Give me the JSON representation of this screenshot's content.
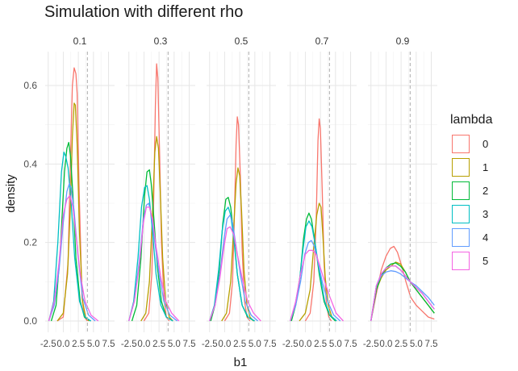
{
  "chart_data": {
    "type": "line",
    "title": "Simulation with different rho",
    "xlabel": "b1",
    "ylabel": "density",
    "ylim": [
      0,
      0.68
    ],
    "yticks": [
      0.0,
      0.2,
      0.4,
      0.6
    ],
    "ytick_labels": [
      "0.0",
      "0.2",
      "0.4",
      "0.6"
    ],
    "xlim": [
      -3.0,
      8.5
    ],
    "xticks": [
      -2.5,
      0.0,
      2.5,
      5.0,
      7.5
    ],
    "xtick_labels": [
      "-2.5",
      "0.0",
      "2.5",
      "5.0",
      "7.5"
    ],
    "reference_line_x": 4.0,
    "grid": true,
    "legend_title": "lambda",
    "legend_position": "right",
    "lambdas": [
      "0",
      "1",
      "2",
      "3",
      "4",
      "5"
    ],
    "colors": {
      "0": "#F8766D",
      "1": "#B79F00",
      "2": "#00BA38",
      "3": "#00BFC4",
      "4": "#619CFF",
      "5": "#F564E3"
    },
    "panels": [
      {
        "label": "0.1",
        "series": [
          {
            "lambda": "0",
            "x": [
              -1.0,
              0.0,
              0.8,
              1.2,
              1.5,
              1.8,
              2.1,
              2.3,
              2.6,
              3.1,
              3.5,
              4.0
            ],
            "y": [
              0.0,
              0.01,
              0.15,
              0.42,
              0.6,
              0.645,
              0.63,
              0.58,
              0.35,
              0.06,
              0.01,
              0.0
            ]
          },
          {
            "lambda": "1",
            "x": [
              -1.0,
              0.0,
              0.7,
              1.2,
              1.5,
              1.8,
              2.0,
              2.3,
              2.7,
              3.2,
              3.7,
              4.2
            ],
            "y": [
              0.0,
              0.02,
              0.12,
              0.3,
              0.47,
              0.555,
              0.55,
              0.45,
              0.22,
              0.05,
              0.01,
              0.0
            ]
          },
          {
            "lambda": "2",
            "x": [
              -2.0,
              -1.2,
              -0.5,
              0.2,
              0.6,
              0.9,
              1.2,
              1.6,
              2.1,
              2.8,
              3.5,
              4.5
            ],
            "y": [
              0.0,
              0.04,
              0.18,
              0.38,
              0.44,
              0.455,
              0.42,
              0.32,
              0.16,
              0.05,
              0.01,
              0.0
            ]
          },
          {
            "lambda": "3",
            "x": [
              -2.4,
              -1.6,
              -0.9,
              -0.3,
              0.1,
              0.4,
              0.8,
              1.3,
              1.9,
              2.7,
              3.6,
              4.6
            ],
            "y": [
              0.0,
              0.05,
              0.2,
              0.38,
              0.43,
              0.42,
              0.39,
              0.3,
              0.16,
              0.05,
              0.01,
              0.0
            ]
          },
          {
            "lambda": "4",
            "x": [
              -2.4,
              -1.5,
              -0.7,
              0.0,
              0.6,
              1.0,
              1.3,
              1.8,
              2.4,
              3.2,
              4.2,
              5.3
            ],
            "y": [
              0.0,
              0.04,
              0.13,
              0.25,
              0.33,
              0.35,
              0.34,
              0.28,
              0.17,
              0.06,
              0.015,
              0.0
            ]
          },
          {
            "lambda": "5",
            "x": [
              -2.4,
              -1.5,
              -0.7,
              0.0,
              0.6,
              1.1,
              1.6,
              2.1,
              2.8,
              3.6,
              4.6,
              5.8
            ],
            "y": [
              0.0,
              0.05,
              0.15,
              0.27,
              0.31,
              0.32,
              0.29,
              0.22,
              0.12,
              0.05,
              0.015,
              0.0
            ]
          }
        ]
      },
      {
        "label": "0.3",
        "series": [
          {
            "lambda": "0",
            "x": [
              0.0,
              0.8,
              1.3,
              1.6,
              1.9,
              2.1,
              2.3,
              2.6,
              2.9,
              3.3,
              3.7,
              4.2
            ],
            "y": [
              0.0,
              0.02,
              0.12,
              0.3,
              0.55,
              0.655,
              0.62,
              0.42,
              0.2,
              0.06,
              0.01,
              0.0
            ]
          },
          {
            "lambda": "1",
            "x": [
              -0.5,
              0.3,
              0.9,
              1.4,
              1.8,
              2.1,
              2.4,
              2.7,
              3.1,
              3.6,
              4.2,
              4.8
            ],
            "y": [
              0.0,
              0.02,
              0.1,
              0.27,
              0.43,
              0.47,
              0.44,
              0.33,
              0.16,
              0.05,
              0.01,
              0.0
            ]
          },
          {
            "lambda": "2",
            "x": [
              -2.0,
              -1.2,
              -0.5,
              0.1,
              0.5,
              0.9,
              1.2,
              1.6,
              2.2,
              2.9,
              3.7,
              4.8
            ],
            "y": [
              0.0,
              0.04,
              0.16,
              0.32,
              0.38,
              0.385,
              0.35,
              0.27,
              0.14,
              0.05,
              0.01,
              0.0
            ]
          },
          {
            "lambda": "3",
            "x": [
              -2.5,
              -1.7,
              -1.0,
              -0.4,
              0.1,
              0.5,
              0.9,
              1.4,
              2.0,
              2.8,
              3.7,
              4.8
            ],
            "y": [
              0.0,
              0.05,
              0.16,
              0.29,
              0.34,
              0.345,
              0.31,
              0.23,
              0.12,
              0.04,
              0.01,
              0.0
            ]
          },
          {
            "lambda": "4",
            "x": [
              -2.5,
              -1.6,
              -0.8,
              -0.1,
              0.4,
              0.8,
              1.2,
              1.8,
              2.5,
              3.3,
              4.3,
              5.5
            ],
            "y": [
              0.0,
              0.05,
              0.15,
              0.26,
              0.295,
              0.3,
              0.27,
              0.2,
              0.12,
              0.05,
              0.015,
              0.0
            ]
          },
          {
            "lambda": "5",
            "x": [
              -2.5,
              -1.6,
              -0.8,
              -0.1,
              0.4,
              0.9,
              1.4,
              2.0,
              2.8,
              3.6,
              4.6,
              5.8
            ],
            "y": [
              0.0,
              0.05,
              0.14,
              0.25,
              0.29,
              0.29,
              0.26,
              0.19,
              0.11,
              0.05,
              0.02,
              0.0
            ]
          }
        ]
      },
      {
        "label": "0.5",
        "series": [
          {
            "lambda": "0",
            "x": [
              0.0,
              0.8,
              1.3,
              1.6,
              1.9,
              2.1,
              2.3,
              2.6,
              2.9,
              3.3,
              3.7,
              4.2
            ],
            "y": [
              0.0,
              0.02,
              0.1,
              0.26,
              0.45,
              0.52,
              0.5,
              0.37,
              0.18,
              0.05,
              0.01,
              0.0
            ]
          },
          {
            "lambda": "1",
            "x": [
              -0.5,
              0.3,
              1.0,
              1.5,
              1.9,
              2.2,
              2.5,
              2.8,
              3.2,
              3.7,
              4.2,
              4.8
            ],
            "y": [
              0.0,
              0.02,
              0.1,
              0.24,
              0.35,
              0.39,
              0.37,
              0.28,
              0.13,
              0.04,
              0.01,
              0.0
            ]
          },
          {
            "lambda": "2",
            "x": [
              -2.3,
              -1.6,
              -0.9,
              -0.3,
              0.2,
              0.6,
              1.0,
              1.5,
              2.1,
              2.9,
              3.8,
              4.9
            ],
            "y": [
              0.0,
              0.04,
              0.13,
              0.25,
              0.31,
              0.315,
              0.29,
              0.22,
              0.12,
              0.04,
              0.01,
              0.0
            ]
          },
          {
            "lambda": "3",
            "x": [
              -2.5,
              -1.7,
              -1.0,
              -0.4,
              0.1,
              0.6,
              1.0,
              1.5,
              2.1,
              2.9,
              3.9,
              5.0
            ],
            "y": [
              0.0,
              0.04,
              0.13,
              0.23,
              0.28,
              0.29,
              0.27,
              0.21,
              0.12,
              0.04,
              0.01,
              0.0
            ]
          },
          {
            "lambda": "4",
            "x": [
              -2.5,
              -1.6,
              -0.8,
              -0.1,
              0.4,
              0.9,
              1.3,
              1.9,
              2.6,
              3.4,
              4.4,
              5.5
            ],
            "y": [
              0.0,
              0.04,
              0.12,
              0.21,
              0.26,
              0.27,
              0.25,
              0.19,
              0.12,
              0.05,
              0.015,
              0.0
            ]
          },
          {
            "lambda": "5",
            "x": [
              -2.5,
              -1.6,
              -0.8,
              -0.1,
              0.4,
              0.9,
              1.5,
              2.1,
              2.9,
              3.8,
              4.8,
              6.0
            ],
            "y": [
              0.0,
              0.04,
              0.11,
              0.19,
              0.235,
              0.24,
              0.22,
              0.17,
              0.11,
              0.05,
              0.02,
              0.0
            ]
          }
        ]
      },
      {
        "label": "0.7",
        "series": [
          {
            "lambda": "0",
            "x": [
              0.0,
              0.8,
              1.4,
              1.8,
              2.1,
              2.3,
              2.5,
              2.8,
              3.1,
              3.5,
              3.9,
              4.3
            ],
            "y": [
              0.0,
              0.02,
              0.1,
              0.26,
              0.46,
              0.515,
              0.49,
              0.33,
              0.15,
              0.04,
              0.01,
              0.0
            ]
          },
          {
            "lambda": "1",
            "x": [
              -1.0,
              0.0,
              0.8,
              1.4,
              1.9,
              2.3,
              2.6,
              2.9,
              3.3,
              3.8,
              4.4,
              5.0
            ],
            "y": [
              0.0,
              0.02,
              0.08,
              0.19,
              0.27,
              0.3,
              0.29,
              0.22,
              0.11,
              0.04,
              0.01,
              0.0
            ]
          },
          {
            "lambda": "2",
            "x": [
              -2.3,
              -1.6,
              -0.9,
              -0.3,
              0.2,
              0.6,
              1.0,
              1.6,
              2.3,
              3.1,
              4.0,
              5.0
            ],
            "y": [
              0.0,
              0.04,
              0.11,
              0.21,
              0.26,
              0.275,
              0.26,
              0.2,
              0.12,
              0.05,
              0.015,
              0.0
            ]
          },
          {
            "lambda": "3",
            "x": [
              -2.5,
              -1.7,
              -1.0,
              -0.4,
              0.1,
              0.6,
              1.1,
              1.7,
              2.4,
              3.2,
              4.1,
              5.2
            ],
            "y": [
              0.0,
              0.04,
              0.1,
              0.18,
              0.24,
              0.255,
              0.24,
              0.19,
              0.12,
              0.05,
              0.015,
              0.0
            ]
          },
          {
            "lambda": "4",
            "x": [
              -2.5,
              -1.6,
              -0.8,
              -0.1,
              0.5,
              1.0,
              1.5,
              2.1,
              2.8,
              3.7,
              4.7,
              5.8
            ],
            "y": [
              0.0,
              0.04,
              0.1,
              0.17,
              0.2,
              0.205,
              0.19,
              0.15,
              0.1,
              0.05,
              0.015,
              0.0
            ]
          },
          {
            "lambda": "5",
            "x": [
              -2.5,
              -1.6,
              -0.8,
              0.0,
              0.6,
              1.2,
              1.8,
              2.4,
              3.2,
              4.1,
              5.1,
              6.3
            ],
            "y": [
              0.0,
              0.05,
              0.12,
              0.17,
              0.18,
              0.18,
              0.17,
              0.14,
              0.1,
              0.06,
              0.02,
              0.0
            ]
          }
        ]
      },
      {
        "label": "0.9",
        "series": [
          {
            "lambda": "0",
            "x": [
              -2.5,
              -1.6,
              -0.8,
              0.0,
              0.7,
              1.3,
              1.9,
              2.6,
              3.3,
              4.1,
              5.0,
              6.0,
              7.0,
              8.0
            ],
            "y": [
              0.0,
              0.07,
              0.13,
              0.165,
              0.185,
              0.19,
              0.175,
              0.14,
              0.1,
              0.06,
              0.04,
              0.025,
              0.01,
              0.005
            ]
          },
          {
            "lambda": "1",
            "x": [
              -2.5,
              -1.6,
              -0.8,
              0.0,
              0.8,
              1.6,
              2.4,
              3.2,
              4.0,
              5.0,
              6.0,
              7.0,
              8.0
            ],
            "y": [
              0.0,
              0.08,
              0.11,
              0.13,
              0.14,
              0.15,
              0.145,
              0.125,
              0.1,
              0.08,
              0.06,
              0.04,
              0.02
            ]
          },
          {
            "lambda": "2",
            "x": [
              -2.5,
              -1.6,
              -0.8,
              0.0,
              0.8,
              1.6,
              2.4,
              3.2,
              4.0,
              5.0,
              6.0,
              7.0,
              8.0
            ],
            "y": [
              0.0,
              0.08,
              0.115,
              0.135,
              0.145,
              0.148,
              0.14,
              0.125,
              0.1,
              0.08,
              0.06,
              0.04,
              0.02
            ]
          },
          {
            "lambda": "3",
            "x": [
              -2.5,
              -1.6,
              -0.8,
              0.0,
              0.8,
              1.6,
              2.4,
              3.2,
              4.0,
              5.0,
              6.0,
              7.0,
              8.0
            ],
            "y": [
              0.0,
              0.09,
              0.12,
              0.135,
              0.14,
              0.14,
              0.13,
              0.115,
              0.1,
              0.085,
              0.07,
              0.05,
              0.03
            ]
          },
          {
            "lambda": "4",
            "x": [
              -2.5,
              -1.6,
              -0.8,
              0.0,
              0.8,
              1.6,
              2.4,
              3.2,
              4.0,
              5.0,
              6.0,
              7.0,
              8.0
            ],
            "y": [
              0.0,
              0.09,
              0.115,
              0.125,
              0.128,
              0.126,
              0.12,
              0.11,
              0.1,
              0.09,
              0.075,
              0.06,
              0.04
            ]
          },
          {
            "lambda": "5",
            "x": [
              -2.5,
              -1.6,
              -0.8,
              0.0,
              0.8,
              1.6,
              2.4,
              3.2,
              4.0,
              5.0,
              6.0,
              7.0,
              8.0
            ],
            "y": [
              0.0,
              0.09,
              0.12,
              0.135,
              0.14,
              0.14,
              0.13,
              0.115,
              0.1,
              0.085,
              0.07,
              0.05,
              0.03
            ]
          }
        ]
      }
    ]
  }
}
